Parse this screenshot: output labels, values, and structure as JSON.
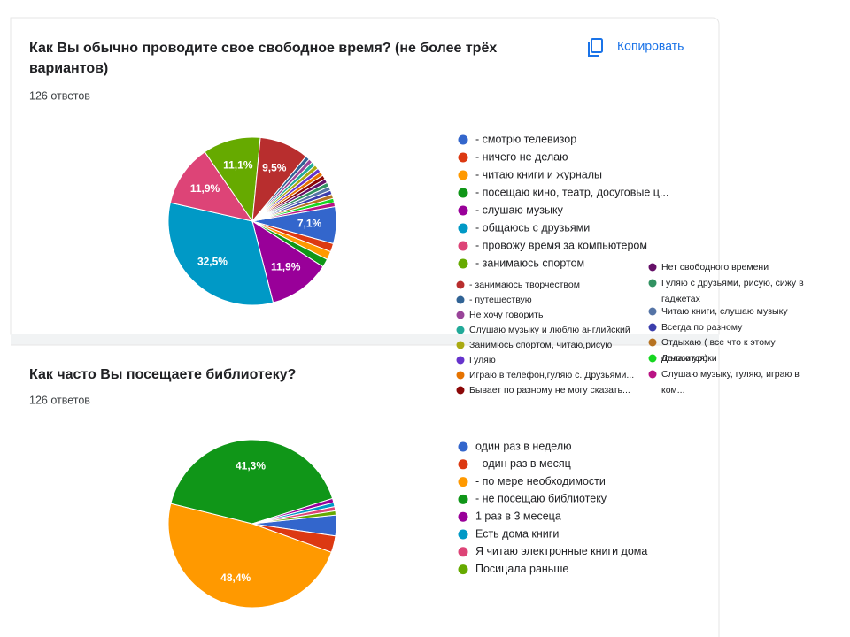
{
  "copy_button": "Копировать",
  "chart_data": [
    {
      "type": "pie",
      "title": "Как Вы обычно проводите свое свободное время? (не более трёх вариантов)",
      "subtitle": "126 ответов",
      "categories": [
        "- смотрю телевизор",
        "- ничего не делаю",
        "- читаю книги и журналы",
        "- посещаю кино, театр, досуговые ц...",
        "- слушаю музыку",
        "- общаюсь с друзьями",
        "- провожу время за компьютером",
        "- занимаюсь спортом",
        "- занимаюсь творчеством",
        "- путешествую",
        "Не хочу говорить",
        "Слушаю музыку и люблю английский",
        "Занимюсь спортом, читаю,рисую",
        "Гуляю",
        "Играю в телефон,гуляю с. Друзьями...",
        "Бывает по разному не могу сказать...",
        "Нет свободного времени",
        "Гуляю с друзьями, рисую, сижу в гаджетах",
        "Читаю книги, слушаю музыку",
        "Всегда по разному",
        "Отдыхаю ( все что к этому относится)",
        "Делаю уроки",
        "Слушаю музыку, гуляю, играю в ком..."
      ],
      "values": [
        7.1,
        1.6,
        1.6,
        1.6,
        11.9,
        32.5,
        11.9,
        11.1,
        9.5,
        0.8,
        0.8,
        0.8,
        0.8,
        0.8,
        0.8,
        0.8,
        0.8,
        0.8,
        0.8,
        0.8,
        0.8,
        0.8,
        0.8
      ],
      "value_labels": [
        "7,1%",
        null,
        null,
        null,
        "11,9%",
        "32,5%",
        "11,9%",
        "11,1%",
        "9,5%",
        null,
        null,
        null,
        null,
        null,
        null,
        null,
        null,
        null,
        null,
        null,
        null,
        null,
        null
      ],
      "colors": [
        "#3366cc",
        "#dc3912",
        "#ff9900",
        "#109618",
        "#990099",
        "#0099c6",
        "#dd4477",
        "#66aa00",
        "#b82e2e",
        "#316395",
        "#994499",
        "#22aa99",
        "#aaaa11",
        "#6633cc",
        "#e67300",
        "#8b0707",
        "#651067",
        "#329262",
        "#5574a6",
        "#3b3eac",
        "#b77322",
        "#16d620",
        "#b91383"
      ]
    },
    {
      "type": "pie",
      "title": "Как часто Вы посещаете библиотеку?",
      "subtitle": "126 ответов",
      "categories": [
        "один раз в неделю",
        "- один раз в месяц",
        "- по мере необходимости",
        "- не посещаю библиотеку",
        "1 раз в 3 месеца",
        "Есть дома книги",
        "Я читаю электронные книги дома",
        "Посицала раньше"
      ],
      "values": [
        4.0,
        3.2,
        48.4,
        41.3,
        0.8,
        0.8,
        0.8,
        0.8
      ],
      "value_labels": [
        null,
        null,
        "48,4%",
        "41,3%",
        null,
        null,
        null,
        null
      ],
      "colors": [
        "#3366cc",
        "#dc3912",
        "#ff9900",
        "#109618",
        "#990099",
        "#0099c6",
        "#dd4477",
        "#66aa00"
      ]
    }
  ]
}
